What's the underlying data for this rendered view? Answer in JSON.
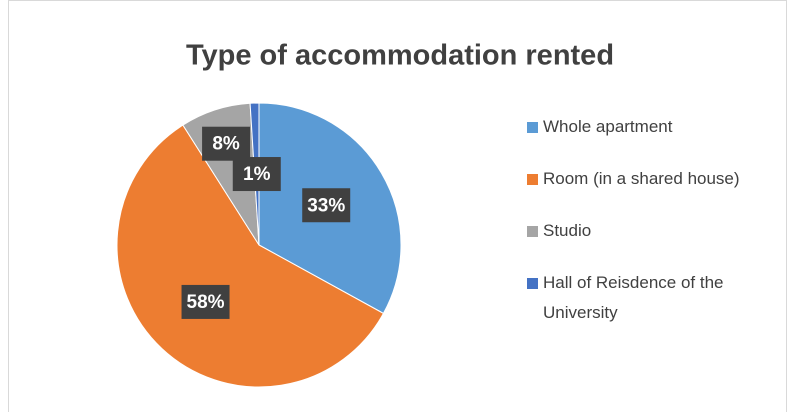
{
  "chart_data": {
    "type": "pie",
    "title": "Type of accommodation rented",
    "categories": [
      "Whole apartment",
      "Room (in a shared house)",
      "Studio",
      "Hall of Reisdence of the University"
    ],
    "values": [
      33,
      58,
      8,
      1
    ],
    "value_labels": [
      "33%",
      "58%",
      "8%",
      "1%"
    ],
    "colors": [
      "#5b9bd5",
      "#ed7d31",
      "#a5a5a5",
      "#4472c4"
    ],
    "legend": "right"
  }
}
